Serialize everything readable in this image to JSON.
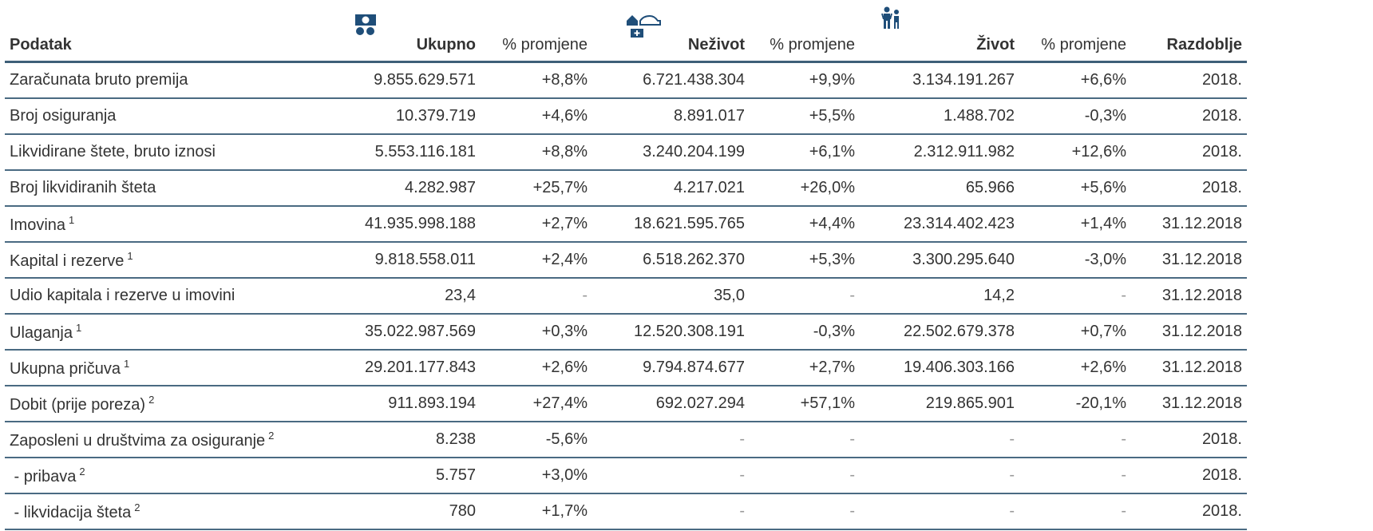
{
  "table": {
    "header": [
      "Podatak",
      "Ukupno",
      "% promjene",
      "Neživot",
      "% promjene",
      "Život",
      "% promjene",
      "Razdoblje"
    ],
    "rows": [
      {
        "label": "Zaračunata bruto premija",
        "cells": [
          "9.855.629.571",
          "+8,8%",
          "6.721.438.304",
          "+9,9%",
          "3.134.191.267",
          "+6,6%",
          "2018."
        ]
      },
      {
        "label": "Broj osiguranja",
        "cells": [
          "10.379.719",
          "+4,6%",
          "8.891.017",
          "+5,5%",
          "1.488.702",
          "-0,3%",
          "2018."
        ]
      },
      {
        "label": "Likvidirane štete, bruto iznosi",
        "cells": [
          "5.553.116.181",
          "+8,8%",
          "3.240.204.199",
          "+6,1%",
          "2.312.911.982",
          "+12,6%",
          "2018."
        ]
      },
      {
        "label": "Broj likvidiranih šteta",
        "cells": [
          "4.282.987",
          "+25,7%",
          "4.217.021",
          "+26,0%",
          "65.966",
          "+5,6%",
          "2018."
        ]
      },
      {
        "label": "Imovina",
        "note": "1",
        "cells": [
          "41.935.998.188",
          "+2,7%",
          "18.621.595.765",
          "+4,4%",
          "23.314.402.423",
          "+1,4%",
          "31.12.2018"
        ]
      },
      {
        "label": "Kapital i rezerve",
        "note": "1",
        "cells": [
          "9.818.558.011",
          "+2,4%",
          "6.518.262.370",
          "+5,3%",
          "3.300.295.640",
          "-3,0%",
          "31.12.2018"
        ]
      },
      {
        "label": "Udio kapitala i rezerve u imovini",
        "cells": [
          "23,4",
          "-",
          "35,0",
          "-",
          "14,2",
          "-",
          "31.12.2018"
        ]
      },
      {
        "label": "Ulaganja",
        "note": "1",
        "cells": [
          "35.022.987.569",
          "+0,3%",
          "12.520.308.191",
          "-0,3%",
          "22.502.679.378",
          "+0,7%",
          "31.12.2018"
        ]
      },
      {
        "label": "Ukupna pričuva",
        "note": "1",
        "cells": [
          "29.201.177.843",
          "+2,6%",
          "9.794.874.677",
          "+2,7%",
          "19.406.303.166",
          "+2,6%",
          "31.12.2018"
        ]
      },
      {
        "label": "Dobit (prije poreza)",
        "note": "2",
        "cells": [
          "911.893.194",
          "+27,4%",
          "692.027.294",
          "+57,1%",
          "219.865.901",
          "-20,1%",
          "31.12.2018"
        ]
      },
      {
        "label": "Zaposleni u društvima za osiguranje",
        "note": "2",
        "cells": [
          "8.238",
          "-5,6%",
          "-",
          "-",
          "-",
          "-",
          "2018."
        ]
      },
      {
        "label": " - pribava",
        "note": "2",
        "cells": [
          "5.757",
          "+3,0%",
          "-",
          "-",
          "-",
          "-",
          "2018."
        ]
      },
      {
        "label": " - likvidacija šteta",
        "note": "2",
        "cells": [
          "780",
          "+1,7%",
          "-",
          "-",
          "-",
          "-",
          "2018."
        ]
      }
    ]
  }
}
